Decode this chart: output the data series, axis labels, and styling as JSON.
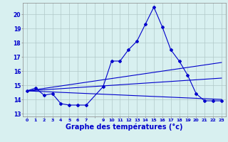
{
  "background_color": "#d8f0f0",
  "grid_color": "#b0c8c8",
  "line_color": "#0000cc",
  "xlabel": "Graphe des températures (°c)",
  "xlabel_fontsize": 7,
  "yticks": [
    13,
    14,
    15,
    16,
    17,
    18,
    19,
    20
  ],
  "ylim": [
    12.8,
    20.8
  ],
  "xlim": [
    -0.5,
    23.5
  ],
  "xtick_labels": [
    "0",
    "1",
    "2",
    "3",
    "4",
    "5",
    "6",
    "7",
    "",
    "9",
    "10",
    "11",
    "12",
    "13",
    "14",
    "15",
    "16",
    "17",
    "18",
    "19",
    "20",
    "21",
    "22",
    "23"
  ],
  "series1_x": [
    0,
    1,
    2,
    3,
    4,
    5,
    6,
    7,
    9,
    10,
    11,
    12,
    13,
    14,
    15,
    16,
    17,
    18,
    19,
    20,
    21,
    22,
    23
  ],
  "series1_y": [
    14.6,
    14.8,
    14.3,
    14.4,
    13.7,
    13.6,
    13.6,
    13.6,
    14.9,
    16.7,
    16.7,
    17.5,
    18.1,
    19.3,
    20.5,
    19.1,
    17.5,
    16.7,
    15.7,
    14.4,
    13.9,
    13.9,
    13.9
  ],
  "series2_x": [
    0,
    23
  ],
  "series2_y": [
    14.6,
    14.0
  ],
  "series3_x": [
    0,
    23
  ],
  "series3_y": [
    14.6,
    15.5
  ],
  "series4_x": [
    0,
    23
  ],
  "series4_y": [
    14.6,
    16.6
  ],
  "marker": "D",
  "marker_size": 2.0,
  "linewidth": 0.8,
  "spine_color": "#888888"
}
